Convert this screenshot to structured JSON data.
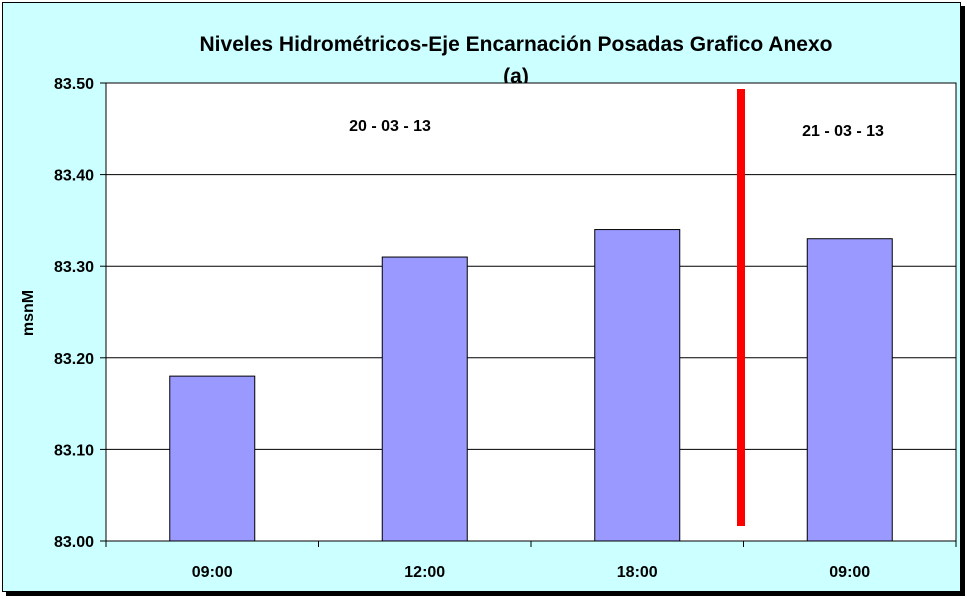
{
  "chart_data": {
    "type": "bar",
    "title": "Niveles Hidrométricos-Eje Encarnación Posadas Grafico Anexo",
    "subtitle": "(a)",
    "xlabel": "",
    "ylabel": "msnM",
    "categories": [
      "09:00",
      "12:00",
      "18:00",
      "09:00"
    ],
    "values": [
      83.18,
      83.31,
      83.34,
      83.33
    ],
    "ylim": [
      83.0,
      83.5
    ],
    "yticks": [
      83.0,
      83.1,
      83.2,
      83.3,
      83.4,
      83.5
    ],
    "ytick_labels": [
      "83.00",
      "83.10",
      "83.20",
      "83.30",
      "83.40",
      "83.50"
    ],
    "grid": true,
    "bar_color": "#9999ff",
    "divider_color": "#ff0000",
    "annotations": [
      {
        "text": "20 - 03 - 13",
        "id": "date-day1"
      },
      {
        "text": "21 - 03 - 13",
        "id": "date-day2"
      }
    ]
  },
  "colors": {
    "background": "#ccffff",
    "plot_area": "#ffffff"
  }
}
